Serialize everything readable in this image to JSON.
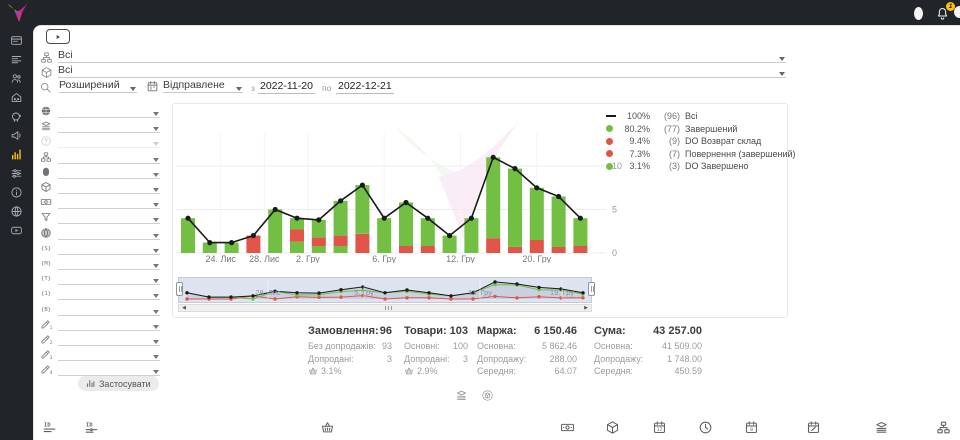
{
  "topbar": {
    "notification_count": "1"
  },
  "sidebar": {
    "items": [
      {
        "name": "dashboard",
        "icon": "card",
        "active": false
      },
      {
        "name": "orders",
        "icon": "list",
        "active": false
      },
      {
        "name": "customers",
        "icon": "users",
        "active": false
      },
      {
        "name": "warehouse",
        "icon": "home",
        "active": false
      },
      {
        "name": "finance",
        "icon": "pig",
        "active": false
      },
      {
        "name": "marketing",
        "icon": "megaphone",
        "active": false
      },
      {
        "name": "analytics",
        "icon": "chart",
        "active": true
      },
      {
        "name": "settings",
        "icon": "sliders",
        "active": false
      },
      {
        "name": "info",
        "icon": "info",
        "active": false
      },
      {
        "name": "integrations",
        "icon": "globe-sync",
        "active": false
      },
      {
        "name": "video-guide",
        "icon": "video",
        "active": false
      }
    ]
  },
  "filters": {
    "rows": [
      {
        "icon": "sitemap",
        "value": "Всі"
      },
      {
        "icon": "package",
        "value": "Всі"
      }
    ],
    "search": {
      "mode": "Розширений",
      "date_field": "Відправлене",
      "from_label": "з",
      "date_from": "2022-11-20",
      "to_label": "по",
      "date_to": "2022-12-21"
    },
    "left_rows": [
      {
        "icon": "globe-dark",
        "disabled": false
      },
      {
        "icon": "layers",
        "disabled": false
      },
      {
        "icon": "help",
        "disabled": true
      },
      {
        "icon": "sitemap",
        "disabled": false
      },
      {
        "icon": "avatar",
        "disabled": false
      },
      {
        "icon": "package",
        "disabled": false
      },
      {
        "icon": "banknote",
        "disabled": false
      },
      {
        "icon": "funnel",
        "disabled": false
      },
      {
        "icon": "globe-wire",
        "disabled": false
      },
      {
        "icon": "brace-s",
        "disabled": false
      },
      {
        "icon": "brace-m",
        "disabled": false
      },
      {
        "icon": "brace-t",
        "disabled": false
      },
      {
        "icon": "brace-1",
        "disabled": false
      },
      {
        "icon": "brace-b",
        "disabled": false
      },
      {
        "icon": "pencil-1",
        "disabled": false
      },
      {
        "icon": "pencil-2",
        "disabled": false
      },
      {
        "icon": "pencil-3",
        "disabled": false
      },
      {
        "icon": "pencil-4",
        "disabled": false
      }
    ],
    "apply_label": "Застосувати"
  },
  "legend": [
    {
      "marker": "line",
      "color": "#1a1a1a",
      "pct": "100%",
      "count": "(96)",
      "label": "Всі"
    },
    {
      "marker": "dot",
      "color": "#72bf44",
      "pct": "80.2%",
      "count": "(77)",
      "label": "Завершений"
    },
    {
      "marker": "dot",
      "color": "#e05548",
      "pct": "9.4%",
      "count": "(9)",
      "label": "DO Возврат склад"
    },
    {
      "marker": "dot",
      "color": "#e05548",
      "pct": "7.3%",
      "count": "(7)",
      "label": "Повернення (завершений)"
    },
    {
      "marker": "dot",
      "color": "#72bf44",
      "pct": "3.1%",
      "count": "(3)",
      "label": "DO Завершено"
    }
  ],
  "chart_data": {
    "type": "bar",
    "stacked": true,
    "overlay_line": "Всі (total orders per day)",
    "date_range": [
      "2022-11-20",
      "2022-12-21"
    ],
    "ylim": [
      0,
      12
    ],
    "y_ticks": [
      0,
      5,
      10
    ],
    "colors": {
      "green": "#72bf44",
      "red": "#e05548",
      "line": "#1a1a1a"
    },
    "bars": [
      {
        "segments": [
          [
            "green",
            4
          ]
        ],
        "total": 4
      },
      {
        "segments": [
          [
            "green",
            1.2
          ]
        ],
        "total": 1.2
      },
      {
        "segments": [
          [
            "green",
            1.2
          ]
        ],
        "total": 1.2
      },
      {
        "segments": [
          [
            "red",
            2
          ]
        ],
        "total": 2
      },
      {
        "segments": [
          [
            "green",
            5
          ]
        ],
        "total": 5
      },
      {
        "segments": [
          [
            "green",
            1.3
          ],
          [
            "red",
            1.4
          ],
          [
            "green",
            1.3
          ]
        ],
        "total": 4
      },
      {
        "segments": [
          [
            "green",
            0.8
          ],
          [
            "red",
            1
          ],
          [
            "green",
            2
          ]
        ],
        "total": 3.8
      },
      {
        "segments": [
          [
            "green",
            0.8
          ],
          [
            "red",
            1.2
          ],
          [
            "green",
            4
          ]
        ],
        "total": 6
      },
      {
        "segments": [
          [
            "red",
            2.2
          ],
          [
            "green",
            5.6
          ]
        ],
        "total": 7.8
      },
      {
        "segments": [
          [
            "green",
            4
          ]
        ],
        "total": 4
      },
      {
        "segments": [
          [
            "red",
            0.8
          ],
          [
            "green",
            5
          ]
        ],
        "total": 5.8
      },
      {
        "segments": [
          [
            "red",
            0.8
          ],
          [
            "green",
            3.2
          ]
        ],
        "total": 4
      },
      {
        "segments": [
          [
            "green",
            2
          ]
        ],
        "total": 2
      },
      {
        "segments": [
          [
            "green",
            4
          ]
        ],
        "total": 4
      },
      {
        "segments": [
          [
            "red",
            1.7
          ],
          [
            "green",
            9.3
          ]
        ],
        "total": 11
      },
      {
        "segments": [
          [
            "red",
            0.7
          ],
          [
            "green",
            9
          ]
        ],
        "total": 9.7
      },
      {
        "segments": [
          [
            "red",
            1.5
          ],
          [
            "green",
            6
          ]
        ],
        "total": 7.5
      },
      {
        "segments": [
          [
            "red",
            0.7
          ],
          [
            "green",
            5.8
          ]
        ],
        "total": 6.5
      },
      {
        "segments": [
          [
            "red",
            0.8
          ],
          [
            "green",
            3.2
          ]
        ],
        "total": 4
      }
    ],
    "x_tick_labels": [
      {
        "label": "24. Лис",
        "bar": 1.5
      },
      {
        "label": "28. Лис",
        "bar": 3.5
      },
      {
        "label": "2. Гру",
        "bar": 5.5
      },
      {
        "label": "6. Гру",
        "bar": 9
      },
      {
        "label": "12. Гру",
        "bar": 12.5
      },
      {
        "label": "20. Гру",
        "bar": 16
      }
    ],
    "navigator_labels": [
      "28. Лис",
      "5. Гру",
      "13. Гру",
      "19. Гру"
    ]
  },
  "stats": {
    "columns": [
      {
        "title": "Замовлення:",
        "value": "96",
        "rows": [
          {
            "label": "Без допродажів:",
            "value": "93"
          },
          {
            "label": "Допродані:",
            "value": "3"
          },
          {
            "icon": "basket",
            "label": "",
            "value": "3.1%"
          }
        ]
      },
      {
        "title": "Товари:",
        "value": "103",
        "rows": [
          {
            "label": "Основні:",
            "value": "100"
          },
          {
            "label": "Допродані:",
            "value": "3"
          },
          {
            "icon": "basket",
            "label": "",
            "value": "2.9%"
          }
        ]
      },
      {
        "title": "Маржа:",
        "value": "6 150.46",
        "rows": [
          {
            "label": "Основна:",
            "value": "5 862.46"
          },
          {
            "label": "Допродажу:",
            "value": "288.00"
          },
          {
            "label": "Середня:",
            "value": "64.07"
          }
        ]
      },
      {
        "title": "Сума:",
        "value": "43 257.00",
        "rows": [
          {
            "label": "Основна:",
            "value": "41 509.00"
          },
          {
            "label": "Допродажу:",
            "value": "1 748.00"
          },
          {
            "label": "Середня:",
            "value": "450.59"
          }
        ]
      }
    ]
  },
  "footer": {
    "view_icons": [
      {
        "name": "list-view",
        "icon": "layers"
      },
      {
        "name": "package-view",
        "icon": "package-circle"
      }
    ],
    "toolbar": [
      {
        "name": "id-lines",
        "icon": "id-lines"
      },
      {
        "name": "id-link",
        "icon": "id-link"
      },
      {
        "name": "basket",
        "icon": "basket"
      },
      {
        "name": "banknote",
        "icon": "banknote"
      },
      {
        "name": "package",
        "icon": "package"
      },
      {
        "name": "calendar-17",
        "icon": "calendar-17"
      },
      {
        "name": "clock",
        "icon": "clock"
      },
      {
        "name": "calendar-8",
        "icon": "calendar-8"
      },
      {
        "name": "calendar-edit",
        "icon": "calendar-edit"
      },
      {
        "name": "layers",
        "icon": "layers"
      },
      {
        "name": "sitemap",
        "icon": "sitemap"
      }
    ]
  }
}
